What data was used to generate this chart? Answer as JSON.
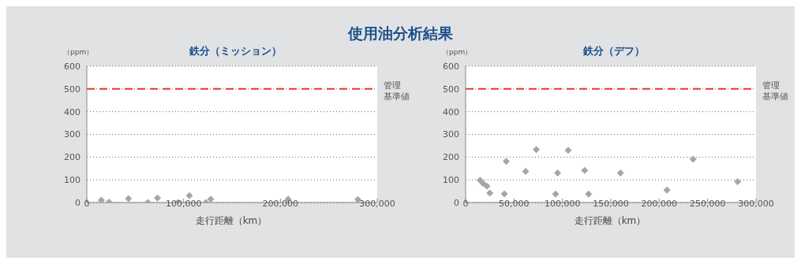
{
  "chart_data": [
    {
      "type": "other",
      "title": "使用油分析結果"
    },
    {
      "type": "scatter",
      "title": "鉄分（ミッション）",
      "xlabel": "走行距離（km）",
      "ylabel": "（ppm）",
      "x": [
        15000,
        23000,
        43000,
        63000,
        73000,
        94000,
        106000,
        123000,
        128000,
        208000,
        280000
      ],
      "series": [
        {
          "color": "#a6a6a6",
          "values": [
            10,
            2,
            17,
            0,
            20,
            0,
            30,
            0,
            15,
            15,
            13
          ]
        }
      ],
      "marker": "diamond",
      "xlim": [
        0,
        300000
      ],
      "xticks": [
        0,
        {
          "value": 100000,
          "label": "100,000"
        },
        {
          "value": 200000,
          "label": "200,000"
        },
        {
          "value": 300000,
          "label": "300,000"
        }
      ],
      "ylim": [
        0,
        600
      ],
      "yticks": [
        0,
        100,
        200,
        300,
        400,
        500,
        600
      ],
      "grid": "y",
      "ref_lines": [
        {
          "axis": "y",
          "value": 500,
          "label": "管理基準値",
          "color": "#e8392b",
          "line_style": "dashed"
        }
      ]
    },
    {
      "type": "scatter",
      "title": "鉄分（デフ）",
      "xlabel": "走行距離（km）",
      "ylabel": "（ppm）",
      "x": [
        15000,
        18000,
        22000,
        25000,
        40000,
        42000,
        62000,
        73000,
        93000,
        95000,
        106000,
        123000,
        127000,
        160000,
        208000,
        235000,
        281000
      ],
      "series": [
        {
          "color": "#a6a6a6",
          "values": [
            98,
            84,
            72,
            42,
            38,
            181,
            137,
            233,
            37,
            130,
            230,
            141,
            37,
            130,
            55,
            191,
            92
          ]
        }
      ],
      "marker": "diamond",
      "xlim": [
        0,
        300000
      ],
      "xticks": [
        0,
        {
          "value": 50000,
          "label": "50,000"
        },
        {
          "value": 100000,
          "label": "100,000"
        },
        {
          "value": 150000,
          "label": "150,000"
        },
        {
          "value": 200000,
          "label": "200,000"
        },
        {
          "value": 250000,
          "label": "250,000"
        },
        {
          "value": 300000,
          "label": "300,000"
        }
      ],
      "ylim": [
        0,
        600
      ],
      "yticks": [
        0,
        100,
        200,
        300,
        400,
        500,
        600
      ],
      "grid": "y",
      "ref_lines": [
        {
          "axis": "y",
          "value": 500,
          "label": "管理基準値",
          "color": "#e8392b",
          "line_style": "dashed"
        }
      ]
    }
  ]
}
